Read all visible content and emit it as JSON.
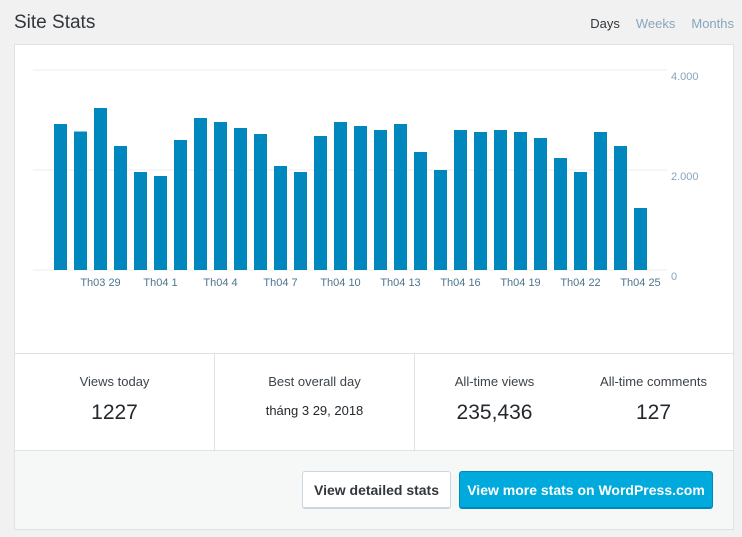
{
  "header": {
    "title": "Site Stats",
    "tabs": [
      {
        "label": "Days",
        "active": true
      },
      {
        "label": "Weeks",
        "active": false
      },
      {
        "label": "Months",
        "active": false
      }
    ]
  },
  "chart_data": {
    "type": "bar",
    "color": "#0087be",
    "values": [
      2920,
      2770,
      3240,
      2480,
      1960,
      1880,
      2600,
      3040,
      2960,
      2840,
      2720,
      2080,
      1960,
      2680,
      2960,
      2880,
      2800,
      2920,
      2360,
      2000,
      2800,
      2760,
      2800,
      2760,
      2640,
      2240,
      1960,
      2760,
      2480,
      1240
    ],
    "ylim": [
      0,
      4000
    ],
    "yticks": [
      "4.000",
      "2.000",
      "0"
    ],
    "xtick_labels": [
      "Th03 29",
      "Th04 1",
      "Th04 4",
      "Th04 7",
      "Th04 10",
      "Th04 13",
      "Th04 16",
      "Th04 19",
      "Th04 22",
      "Th04 25"
    ],
    "xtick_indices": [
      2,
      5,
      8,
      11,
      14,
      17,
      20,
      23,
      26,
      29
    ],
    "grid": true
  },
  "stats": {
    "views_today_label": "Views today",
    "views_today_value": "1227",
    "best_day_label": "Best overall day",
    "best_day_value": "tháng 3 29, 2018",
    "alltime_views_label": "All-time views",
    "alltime_views_value": "235,436",
    "alltime_comments_label": "All-time comments",
    "alltime_comments_value": "127"
  },
  "footer": {
    "detailed_label": "View detailed stats",
    "wpcom_label": "View more stats on WordPress.com"
  }
}
